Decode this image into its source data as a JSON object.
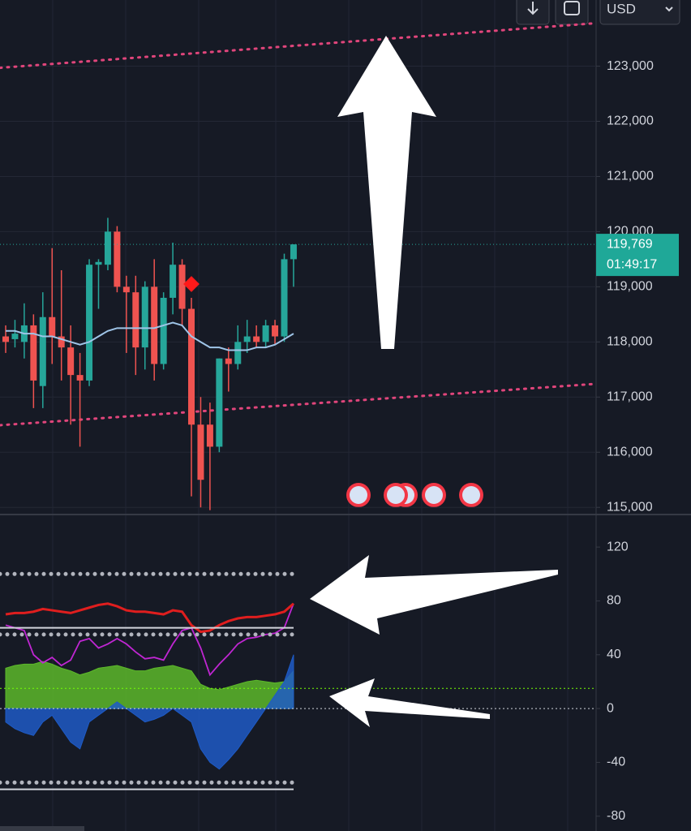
{
  "toolbar": {
    "currency": "USD"
  },
  "chart_data": [
    {
      "type": "candlestick",
      "ylim": [
        114900,
        124200
      ],
      "yticks": [
        {
          "value": 115000,
          "label": "115,000"
        },
        {
          "value": 116000,
          "label": "116,000"
        },
        {
          "value": 117000,
          "label": "117,000"
        },
        {
          "value": 118000,
          "label": "118,000"
        },
        {
          "value": 119000,
          "label": "119,000"
        },
        {
          "value": 120000,
          "label": "120,000"
        },
        {
          "value": 121000,
          "label": "121,000"
        },
        {
          "value": 122000,
          "label": "122,000"
        },
        {
          "value": 123000,
          "label": "123,000"
        }
      ],
      "grid": true,
      "up_color": "#26a69a",
      "down_color": "#ef5350",
      "open": [
        118100,
        118050,
        118000,
        118300,
        117200,
        118450,
        118100,
        117900,
        117400,
        117300,
        119400,
        119400,
        120000,
        119000,
        118900,
        117900,
        119000,
        117600,
        118800,
        119400,
        118600,
        116500,
        116500,
        116100,
        117700,
        117600,
        118000,
        118100,
        118000,
        118300,
        118100,
        119500
      ],
      "high": [
        118300,
        118400,
        118700,
        118500,
        118900,
        119700,
        119300,
        118300,
        117800,
        119500,
        119500,
        120250,
        120100,
        119200,
        119200,
        119100,
        119500,
        118900,
        119800,
        119500,
        118800,
        117000,
        116900,
        117700,
        117900,
        118300,
        118400,
        118300,
        118400,
        118400,
        119600,
        119769
      ],
      "low": [
        117800,
        117900,
        117700,
        116800,
        116800,
        117600,
        117300,
        116500,
        116100,
        117200,
        118600,
        119300,
        118900,
        117800,
        117400,
        117500,
        117300,
        117500,
        118500,
        118300,
        115200,
        115000,
        114950,
        116000,
        117100,
        117500,
        117800,
        117900,
        117900,
        117950,
        118000,
        119000
      ],
      "close": [
        118000,
        118150,
        118300,
        117300,
        118450,
        118100,
        117900,
        117400,
        117300,
        119400,
        119450,
        120000,
        119000,
        118900,
        117900,
        119000,
        117600,
        118800,
        119400,
        118600,
        116500,
        115500,
        116100,
        117700,
        117600,
        118000,
        118100,
        118000,
        118300,
        118100,
        119500,
        119769
      ],
      "series": [
        {
          "color": "#9fc5e8",
          "values": [
            118200,
            118200,
            118150,
            118150,
            118100,
            118100,
            118050,
            118000,
            117950,
            118000,
            118100,
            118200,
            118250,
            118250,
            118250,
            118250,
            118250,
            118300,
            118350,
            118300,
            118100,
            118000,
            117900,
            117900,
            117850,
            117850,
            117850,
            117900,
            117900,
            117950,
            118050,
            118150
          ]
        }
      ],
      "trendlines": [
        {
          "color": "#e0457b",
          "values": [
            122970,
            123780
          ]
        },
        {
          "color": "#e0457b",
          "values": [
            116490,
            117240
          ]
        }
      ],
      "last": {
        "value": 119769,
        "label": "119,769"
      },
      "countdown": "01:49:17"
    },
    {
      "type": "line",
      "ylim": [
        -91,
        143
      ],
      "yticks": [
        -80,
        -40,
        0,
        40,
        80,
        120
      ],
      "levels": [
        {
          "value": 100,
          "color": "#b2b5be",
          "style": "dots"
        },
        {
          "value": 60,
          "color": "#d1d4dc",
          "style": "solid"
        },
        {
          "value": 55,
          "color": "#b2b5be",
          "style": "dots"
        },
        {
          "value": 15,
          "color": "#76ff03",
          "style": "dash"
        },
        {
          "value": 0,
          "color": "#d1d4dc",
          "style": "dash"
        },
        {
          "value": -55,
          "color": "#b2b5be",
          "style": "dots"
        },
        {
          "value": -60,
          "color": "#d1d4dc",
          "style": "solid"
        }
      ],
      "series": [
        {
          "kind": "area",
          "color": "#5cb82a",
          "values": [
            30,
            32,
            33,
            33,
            35,
            33,
            30,
            28,
            25,
            27,
            30,
            31,
            32,
            30,
            28,
            28,
            30,
            31,
            32,
            30,
            28,
            18,
            15,
            14,
            16,
            18,
            20,
            21,
            20,
            19,
            20,
            28
          ]
        },
        {
          "kind": "area",
          "color": "#1e5bc6",
          "values": [
            -10,
            -15,
            -18,
            -20,
            -10,
            -5,
            -15,
            -25,
            -30,
            -10,
            -5,
            0,
            5,
            0,
            -5,
            -10,
            -8,
            -5,
            0,
            -5,
            -10,
            -30,
            -40,
            -45,
            -38,
            -30,
            -20,
            -10,
            0,
            10,
            20,
            40
          ]
        },
        {
          "kind": "line",
          "color": "#c026d3",
          "values": [
            62,
            60,
            58,
            40,
            34,
            38,
            32,
            36,
            50,
            52,
            45,
            48,
            52,
            48,
            42,
            37,
            38,
            36,
            48,
            58,
            60,
            45,
            25,
            33,
            40,
            48,
            52,
            53,
            55,
            56,
            60,
            78
          ]
        },
        {
          "kind": "line",
          "color": "#e01e1e",
          "values": [
            70,
            71,
            71,
            72,
            74,
            73,
            72,
            71,
            73,
            75,
            77,
            78,
            76,
            73,
            72,
            72,
            71,
            70,
            73,
            72,
            62,
            57,
            58,
            62,
            65,
            67,
            68,
            68,
            69,
            70,
            72,
            78
          ]
        }
      ]
    }
  ]
}
